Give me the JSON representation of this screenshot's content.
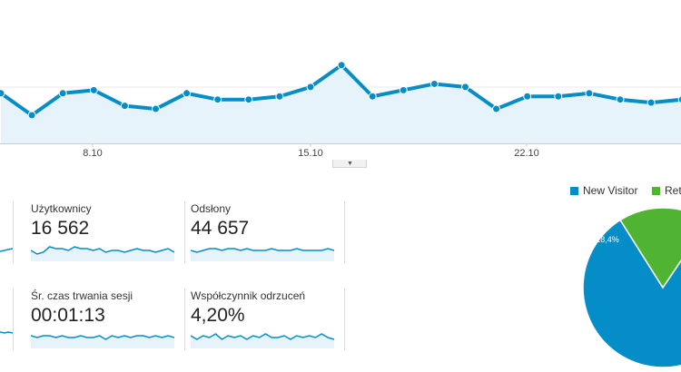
{
  "main_chart": {
    "values": [
      46,
      39,
      46,
      47,
      42,
      41,
      46,
      44,
      44,
      45,
      48,
      55,
      45,
      47,
      49,
      48,
      41,
      45,
      45,
      46,
      44,
      43,
      44,
      43,
      44,
      45,
      44,
      43,
      42
    ],
    "x_labels": [
      "8.10",
      "15.10",
      "22.10"
    ],
    "line_color": "#058dc7",
    "fill_color": "#e6f3fa"
  },
  "collapse_icon": "▼",
  "metrics": [
    {
      "label": "Użytkownicy",
      "value": "16 562"
    },
    {
      "label": "Odsłony",
      "value": "44 657"
    },
    {
      "label": "Śr. czas trwania sesji",
      "value": "00:01:13"
    },
    {
      "label": "Współczynnik odrzuceń",
      "value": "4,20%"
    }
  ],
  "sparklines": [
    [
      5,
      3,
      4,
      7,
      6,
      6,
      5,
      7,
      6,
      6,
      5,
      6,
      4,
      5,
      5,
      4,
      5,
      6,
      5,
      5,
      4,
      5,
      6,
      4
    ],
    [
      5,
      4,
      5,
      6,
      6,
      5,
      6,
      6,
      5,
      6,
      5,
      5,
      5,
      6,
      5,
      5,
      5,
      6,
      5,
      5,
      5,
      5,
      6,
      5
    ],
    [
      6,
      5,
      6,
      6,
      5,
      6,
      5,
      5,
      6,
      5,
      5,
      6,
      4,
      6,
      5,
      6,
      5,
      6,
      6,
      5,
      6,
      5,
      6,
      5
    ],
    [
      6,
      4,
      6,
      5,
      7,
      4,
      6,
      5,
      6,
      4,
      6,
      5,
      7,
      5,
      5,
      6,
      4,
      6,
      5,
      6,
      5,
      7,
      5,
      4
    ]
  ],
  "pie": {
    "slices": [
      {
        "name": "New Visitor",
        "percent": 81.6,
        "color": "#058dc7"
      },
      {
        "name": "Returning Visitor",
        "percent": 18.4,
        "color": "#50b432"
      }
    ],
    "legend_visible": [
      "New Visitor",
      "Ret"
    ],
    "label_small": "18,4%"
  }
}
